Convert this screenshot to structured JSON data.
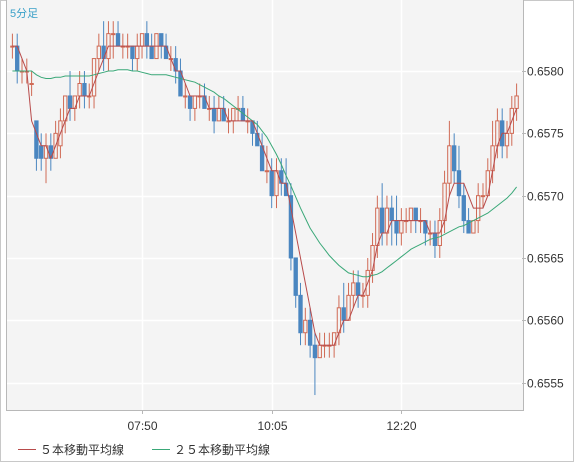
{
  "chart_data": {
    "type": "candlestick",
    "timeframe": "5分足",
    "y_ticks": [
      0.6555,
      0.656,
      0.6565,
      0.657,
      0.6575,
      0.658
    ],
    "y_tick_labels": [
      "0.6555",
      "0.6560",
      "0.6565",
      "0.6570",
      "0.6575",
      "0.6580"
    ],
    "ylim": [
      0.65528,
      0.65857
    ],
    "x_tick_labels": [
      "07:50",
      "10:05",
      "12:20"
    ],
    "x_tick_bar_index": [
      27,
      54,
      81
    ],
    "grid": true,
    "colors": {
      "up": "#d06a55",
      "down": "#4a86c0",
      "ma5": "#b84b4b",
      "ma25": "#3aa878",
      "grid": "#ffffff",
      "axis_text": "#333333"
    },
    "ohlc": [
      [
        0.6582,
        0.6583,
        0.6581,
        0.6582
      ],
      [
        0.6582,
        0.6583,
        0.6579,
        0.658
      ],
      [
        0.658,
        0.6581,
        0.6579,
        0.658
      ],
      [
        0.658,
        0.6581,
        0.6579,
        0.658
      ],
      [
        0.6579,
        0.658,
        0.6578,
        0.6579
      ],
      [
        0.6576,
        0.6576,
        0.6572,
        0.6573
      ],
      [
        0.6574,
        0.6575,
        0.6572,
        0.6573
      ],
      [
        0.6573,
        0.6575,
        0.6571,
        0.6574
      ],
      [
        0.6574,
        0.6575,
        0.6572,
        0.6573
      ],
      [
        0.6573,
        0.6576,
        0.6573,
        0.6575
      ],
      [
        0.6574,
        0.6577,
        0.6573,
        0.6576
      ],
      [
        0.6576,
        0.6578,
        0.6575,
        0.6578
      ],
      [
        0.6578,
        0.658,
        0.6576,
        0.6577
      ],
      [
        0.6577,
        0.6578,
        0.6576,
        0.6578
      ],
      [
        0.6578,
        0.658,
        0.6577,
        0.6579
      ],
      [
        0.6579,
        0.658,
        0.6577,
        0.6578
      ],
      [
        0.6578,
        0.6579,
        0.6577,
        0.6578
      ],
      [
        0.6578,
        0.6581,
        0.6577,
        0.6581
      ],
      [
        0.6581,
        0.6583,
        0.658,
        0.6582
      ],
      [
        0.6582,
        0.6584,
        0.658,
        0.6581
      ],
      [
        0.6581,
        0.6584,
        0.658,
        0.6583
      ],
      [
        0.6583,
        0.6584,
        0.6581,
        0.6583
      ],
      [
        0.6583,
        0.6584,
        0.6582,
        0.6582
      ],
      [
        0.6582,
        0.6583,
        0.6581,
        0.6582
      ],
      [
        0.6582,
        0.6583,
        0.6581,
        0.6582
      ],
      [
        0.6582,
        0.6582,
        0.658,
        0.6581
      ],
      [
        0.6581,
        0.6583,
        0.658,
        0.6582
      ],
      [
        0.6582,
        0.6583,
        0.6581,
        0.6583
      ],
      [
        0.6583,
        0.6584,
        0.6581,
        0.6582
      ],
      [
        0.6582,
        0.6583,
        0.6581,
        0.6581
      ],
      [
        0.6581,
        0.6583,
        0.6581,
        0.6583
      ],
      [
        0.6583,
        0.6583,
        0.6581,
        0.6582
      ],
      [
        0.6582,
        0.6583,
        0.6581,
        0.6581
      ],
      [
        0.6581,
        0.6582,
        0.658,
        0.6581
      ],
      [
        0.6581,
        0.6582,
        0.6579,
        0.658
      ],
      [
        0.658,
        0.6581,
        0.6578,
        0.6578
      ],
      [
        0.6578,
        0.6579,
        0.6577,
        0.6578
      ],
      [
        0.6578,
        0.6578,
        0.6576,
        0.6577
      ],
      [
        0.6577,
        0.6578,
        0.6576,
        0.6578
      ],
      [
        0.6578,
        0.6579,
        0.6577,
        0.6578
      ],
      [
        0.6578,
        0.6579,
        0.6577,
        0.6577
      ],
      [
        0.6577,
        0.6578,
        0.6576,
        0.6577
      ],
      [
        0.6577,
        0.6578,
        0.6575,
        0.6576
      ],
      [
        0.6576,
        0.6578,
        0.6576,
        0.6577
      ],
      [
        0.6577,
        0.6578,
        0.6576,
        0.6576
      ],
      [
        0.6576,
        0.6577,
        0.6575,
        0.6576
      ],
      [
        0.6576,
        0.6577,
        0.6575,
        0.6577
      ],
      [
        0.6577,
        0.6578,
        0.6576,
        0.6577
      ],
      [
        0.6577,
        0.6578,
        0.6576,
        0.6576
      ],
      [
        0.6576,
        0.6577,
        0.6575,
        0.6576
      ],
      [
        0.6576,
        0.6576,
        0.6574,
        0.6575
      ],
      [
        0.6575,
        0.6576,
        0.6574,
        0.6574
      ],
      [
        0.6574,
        0.6575,
        0.6572,
        0.6572
      ],
      [
        0.6572,
        0.6574,
        0.6571,
        0.6572
      ],
      [
        0.6572,
        0.6573,
        0.6569,
        0.657
      ],
      [
        0.657,
        0.6573,
        0.6569,
        0.6572
      ],
      [
        0.6572,
        0.6573,
        0.657,
        0.6571
      ],
      [
        0.6571,
        0.6573,
        0.657,
        0.657
      ],
      [
        0.657,
        0.6571,
        0.6564,
        0.6565
      ],
      [
        0.6565,
        0.6565,
        0.6561,
        0.6562
      ],
      [
        0.6562,
        0.6563,
        0.6558,
        0.6559
      ],
      [
        0.6559,
        0.6561,
        0.6558,
        0.656
      ],
      [
        0.656,
        0.6561,
        0.6557,
        0.6558
      ],
      [
        0.6558,
        0.6559,
        0.6554,
        0.6557
      ],
      [
        0.6557,
        0.6559,
        0.6557,
        0.6558
      ],
      [
        0.6558,
        0.6559,
        0.6557,
        0.6558
      ],
      [
        0.6558,
        0.6559,
        0.6557,
        0.6558
      ],
      [
        0.6558,
        0.6559,
        0.6557,
        0.6559
      ],
      [
        0.6559,
        0.6562,
        0.6558,
        0.6561
      ],
      [
        0.6561,
        0.6563,
        0.6559,
        0.656
      ],
      [
        0.656,
        0.6563,
        0.656,
        0.6562
      ],
      [
        0.6562,
        0.6564,
        0.6561,
        0.6563
      ],
      [
        0.6563,
        0.6564,
        0.6561,
        0.6562
      ],
      [
        0.6562,
        0.6563,
        0.6561,
        0.6562
      ],
      [
        0.6562,
        0.6565,
        0.6561,
        0.6564
      ],
      [
        0.6564,
        0.6567,
        0.6563,
        0.6566
      ],
      [
        0.6566,
        0.657,
        0.6565,
        0.6569
      ],
      [
        0.6569,
        0.6571,
        0.6566,
        0.6567
      ],
      [
        0.6567,
        0.657,
        0.6566,
        0.6569
      ],
      [
        0.6569,
        0.657,
        0.6566,
        0.6568
      ],
      [
        0.6568,
        0.657,
        0.6566,
        0.6567
      ],
      [
        0.6567,
        0.6569,
        0.6566,
        0.6568
      ],
      [
        0.6568,
        0.6569,
        0.6567,
        0.6568
      ],
      [
        0.6568,
        0.6569,
        0.6567,
        0.6569
      ],
      [
        0.6569,
        0.6569,
        0.6567,
        0.6568
      ],
      [
        0.6568,
        0.6569,
        0.6567,
        0.6568
      ],
      [
        0.6568,
        0.6568,
        0.6566,
        0.6567
      ],
      [
        0.6567,
        0.6568,
        0.6566,
        0.6567
      ],
      [
        0.6567,
        0.6568,
        0.6565,
        0.6566
      ],
      [
        0.6566,
        0.6569,
        0.6565,
        0.6568
      ],
      [
        0.6568,
        0.6572,
        0.6567,
        0.6571
      ],
      [
        0.6571,
        0.6576,
        0.657,
        0.6574
      ],
      [
        0.6574,
        0.6575,
        0.6571,
        0.6572
      ],
      [
        0.6572,
        0.6574,
        0.6569,
        0.657
      ],
      [
        0.657,
        0.6571,
        0.6567,
        0.6568
      ],
      [
        0.6568,
        0.6569,
        0.6567,
        0.6567
      ],
      [
        0.6567,
        0.6568,
        0.6567,
        0.6568
      ],
      [
        0.6568,
        0.6571,
        0.6567,
        0.657
      ],
      [
        0.657,
        0.6571,
        0.6569,
        0.657
      ],
      [
        0.657,
        0.6573,
        0.657,
        0.6572
      ],
      [
        0.6572,
        0.6576,
        0.6571,
        0.6574
      ],
      [
        0.6574,
        0.6577,
        0.6573,
        0.6576
      ],
      [
        0.6576,
        0.6577,
        0.6573,
        0.6574
      ],
      [
        0.6574,
        0.6576,
        0.6573,
        0.6575
      ],
      [
        0.6575,
        0.6578,
        0.6574,
        0.6577
      ],
      [
        0.6577,
        0.6579,
        0.6576,
        0.6578
      ]
    ],
    "ma5": [
      0.6582,
      0.6582,
      0.6581,
      0.658,
      0.6576,
      0.6575,
      0.6574,
      0.6574,
      0.6573,
      0.6574,
      0.6575,
      0.6576,
      0.6577,
      0.6577,
      0.6578,
      0.6578,
      0.6578,
      0.6579,
      0.658,
      0.6581,
      0.6582,
      0.6582,
      0.6582,
      0.6582,
      0.6582,
      0.6582,
      0.6582,
      0.6582,
      0.6582,
      0.6582,
      0.6582,
      0.6582,
      0.6582,
      0.6581,
      0.658,
      0.658,
      0.6579,
      0.6578,
      0.6578,
      0.6578,
      0.6578,
      0.6577,
      0.6577,
      0.6577,
      0.6577,
      0.6576,
      0.6576,
      0.6576,
      0.6576,
      0.6576,
      0.6576,
      0.6575,
      0.6574,
      0.6573,
      0.6572,
      0.6572,
      0.6571,
      0.6571,
      0.6569,
      0.6567,
      0.6565,
      0.6563,
      0.6561,
      0.6559,
      0.6558,
      0.6558,
      0.6558,
      0.6558,
      0.6559,
      0.656,
      0.656,
      0.6561,
      0.6562,
      0.6562,
      0.6563,
      0.6564,
      0.6566,
      0.6567,
      0.6567,
      0.6568,
      0.6568,
      0.6568,
      0.6568,
      0.6568,
      0.6568,
      0.6568,
      0.6568,
      0.6567,
      0.6567,
      0.6567,
      0.6568,
      0.657,
      0.6571,
      0.6571,
      0.6571,
      0.657,
      0.6569,
      0.6569,
      0.6569,
      0.657,
      0.6572,
      0.6574,
      0.6575,
      0.6575,
      0.6576,
      0.6577
    ],
    "ma25": [
      0.658,
      0.658,
      0.658,
      0.658,
      0.658,
      0.65797,
      0.65795,
      0.65794,
      0.65794,
      0.65795,
      0.65795,
      0.65796,
      0.65796,
      0.65796,
      0.65796,
      0.65796,
      0.65796,
      0.65797,
      0.65798,
      0.65799,
      0.658,
      0.658,
      0.65801,
      0.65801,
      0.65801,
      0.658,
      0.658,
      0.65799,
      0.65798,
      0.65797,
      0.65797,
      0.65797,
      0.65797,
      0.65796,
      0.65795,
      0.65794,
      0.65793,
      0.65792,
      0.65791,
      0.65789,
      0.65787,
      0.65785,
      0.65783,
      0.6578,
      0.65778,
      0.65775,
      0.65772,
      0.65769,
      0.65766,
      0.65763,
      0.6576,
      0.65757,
      0.65752,
      0.65747,
      0.6574,
      0.65733,
      0.65725,
      0.65716,
      0.65708,
      0.65699,
      0.6569,
      0.65682,
      0.65674,
      0.65668,
      0.65662,
      0.65657,
      0.65652,
      0.65648,
      0.65644,
      0.65641,
      0.65638,
      0.65637,
      0.65636,
      0.65635,
      0.65635,
      0.65636,
      0.65637,
      0.65639,
      0.65642,
      0.65645,
      0.65648,
      0.65651,
      0.65654,
      0.65657,
      0.65659,
      0.65661,
      0.65663,
      0.65665,
      0.65666,
      0.65667,
      0.65669,
      0.65671,
      0.65673,
      0.65675,
      0.65676,
      0.65678,
      0.6568,
      0.65682,
      0.65684,
      0.65686,
      0.65689,
      0.65692,
      0.65695,
      0.65698,
      0.65702,
      0.65707
    ],
    "legend": [
      {
        "label": "５本移動平均線",
        "color": "#b84b4b"
      },
      {
        "label": "２５本移動平均線",
        "color": "#3aa878"
      }
    ]
  }
}
